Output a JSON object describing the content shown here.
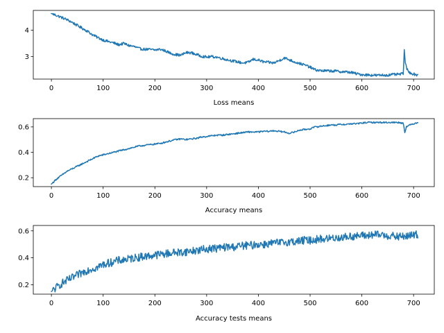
{
  "chart_data": [
    {
      "type": "line",
      "xlabel": "Loss means",
      "ylabel": "",
      "xlim": [
        -35,
        740
      ],
      "ylim": [
        2.15,
        4.75
      ],
      "xticks": [
        0,
        100,
        200,
        300,
        400,
        500,
        600,
        700
      ],
      "yticks": [
        3,
        4
      ],
      "grid": false,
      "noise": 0.05,
      "series": [
        {
          "color": "#1f77b4",
          "x": [
            0,
            10,
            20,
            30,
            40,
            50,
            60,
            70,
            80,
            90,
            100,
            110,
            120,
            130,
            140,
            150,
            160,
            170,
            180,
            190,
            200,
            210,
            220,
            230,
            240,
            250,
            260,
            270,
            280,
            290,
            300,
            310,
            320,
            330,
            340,
            350,
            360,
            370,
            380,
            390,
            400,
            410,
            420,
            430,
            440,
            450,
            460,
            470,
            480,
            490,
            500,
            510,
            520,
            530,
            540,
            550,
            560,
            570,
            580,
            590,
            600,
            610,
            620,
            630,
            640,
            650,
            660,
            670,
            680,
            682,
            684,
            686,
            688,
            690,
            700,
            708
          ],
          "y": [
            4.63,
            4.56,
            4.48,
            4.4,
            4.3,
            4.18,
            4.07,
            3.96,
            3.82,
            3.72,
            3.63,
            3.57,
            3.52,
            3.45,
            3.5,
            3.42,
            3.38,
            3.3,
            3.28,
            3.27,
            3.25,
            3.28,
            3.22,
            3.13,
            3.08,
            3.05,
            3.15,
            3.15,
            3.08,
            3.02,
            2.98,
            3.0,
            2.98,
            2.93,
            2.88,
            2.84,
            2.8,
            2.76,
            2.78,
            2.9,
            2.87,
            2.8,
            2.78,
            2.76,
            2.85,
            2.95,
            2.88,
            2.8,
            2.74,
            2.68,
            2.6,
            2.5,
            2.47,
            2.46,
            2.46,
            2.45,
            2.43,
            2.42,
            2.4,
            2.35,
            2.32,
            2.31,
            2.3,
            2.29,
            2.3,
            2.3,
            2.32,
            2.33,
            2.35,
            3.27,
            2.75,
            2.6,
            2.5,
            2.42,
            2.34,
            2.3
          ]
        }
      ]
    },
    {
      "type": "line",
      "xlabel": "Accuracy means",
      "ylabel": "",
      "xlim": [
        -35,
        740
      ],
      "ylim": [
        0.13,
        0.665
      ],
      "xticks": [
        0,
        100,
        200,
        300,
        400,
        500,
        600,
        700
      ],
      "yticks": [
        0.2,
        0.4,
        0.6
      ],
      "grid": false,
      "noise": 0.006,
      "series": [
        {
          "color": "#1f77b4",
          "x": [
            0,
            10,
            20,
            30,
            40,
            50,
            60,
            70,
            80,
            90,
            100,
            110,
            120,
            130,
            140,
            150,
            160,
            170,
            180,
            190,
            200,
            210,
            220,
            230,
            240,
            250,
            260,
            270,
            280,
            290,
            300,
            310,
            320,
            330,
            340,
            350,
            360,
            370,
            380,
            390,
            400,
            410,
            420,
            430,
            440,
            450,
            460,
            470,
            480,
            490,
            500,
            510,
            520,
            530,
            540,
            550,
            560,
            570,
            580,
            590,
            600,
            610,
            620,
            630,
            640,
            650,
            660,
            670,
            680,
            683,
            686,
            690,
            700,
            708
          ],
          "y": [
            0.15,
            0.19,
            0.22,
            0.25,
            0.27,
            0.29,
            0.31,
            0.33,
            0.35,
            0.37,
            0.38,
            0.39,
            0.4,
            0.41,
            0.42,
            0.43,
            0.44,
            0.45,
            0.455,
            0.46,
            0.465,
            0.47,
            0.48,
            0.49,
            0.5,
            0.505,
            0.5,
            0.505,
            0.51,
            0.52,
            0.525,
            0.53,
            0.535,
            0.535,
            0.54,
            0.545,
            0.55,
            0.555,
            0.56,
            0.56,
            0.56,
            0.565,
            0.565,
            0.57,
            0.565,
            0.56,
            0.55,
            0.56,
            0.575,
            0.58,
            0.585,
            0.6,
            0.605,
            0.61,
            0.615,
            0.615,
            0.62,
            0.62,
            0.625,
            0.625,
            0.63,
            0.635,
            0.635,
            0.635,
            0.635,
            0.635,
            0.635,
            0.635,
            0.63,
            0.56,
            0.6,
            0.61,
            0.625,
            0.635
          ]
        }
      ]
    },
    {
      "type": "line",
      "xlabel": "Accuracy tests means",
      "ylabel": "",
      "xlim": [
        -35,
        740
      ],
      "ylim": [
        0.13,
        0.64
      ],
      "xticks": [
        0,
        100,
        200,
        300,
        400,
        500,
        600,
        700
      ],
      "yticks": [
        0.2,
        0.4,
        0.6
      ],
      "grid": false,
      "noise": 0.03,
      "series": [
        {
          "color": "#1f77b4",
          "x": [
            0,
            10,
            20,
            30,
            40,
            50,
            60,
            70,
            80,
            90,
            100,
            110,
            120,
            130,
            140,
            150,
            160,
            170,
            180,
            190,
            200,
            210,
            220,
            230,
            240,
            250,
            260,
            270,
            280,
            290,
            300,
            310,
            320,
            330,
            340,
            350,
            360,
            370,
            380,
            390,
            400,
            410,
            420,
            430,
            440,
            450,
            460,
            470,
            480,
            490,
            500,
            510,
            520,
            530,
            540,
            550,
            560,
            570,
            580,
            590,
            600,
            610,
            620,
            630,
            640,
            650,
            660,
            670,
            680,
            690,
            700,
            708
          ],
          "y": [
            0.15,
            0.18,
            0.21,
            0.23,
            0.25,
            0.27,
            0.29,
            0.31,
            0.32,
            0.33,
            0.35,
            0.36,
            0.37,
            0.38,
            0.385,
            0.39,
            0.4,
            0.405,
            0.41,
            0.415,
            0.42,
            0.425,
            0.43,
            0.435,
            0.44,
            0.44,
            0.445,
            0.45,
            0.455,
            0.46,
            0.465,
            0.47,
            0.47,
            0.475,
            0.48,
            0.48,
            0.485,
            0.49,
            0.49,
            0.495,
            0.5,
            0.5,
            0.505,
            0.51,
            0.51,
            0.515,
            0.52,
            0.52,
            0.525,
            0.53,
            0.53,
            0.535,
            0.54,
            0.54,
            0.545,
            0.55,
            0.55,
            0.555,
            0.56,
            0.56,
            0.565,
            0.565,
            0.57,
            0.57,
            0.57,
            0.565,
            0.56,
            0.555,
            0.56,
            0.56,
            0.57,
            0.575
          ]
        }
      ]
    }
  ]
}
